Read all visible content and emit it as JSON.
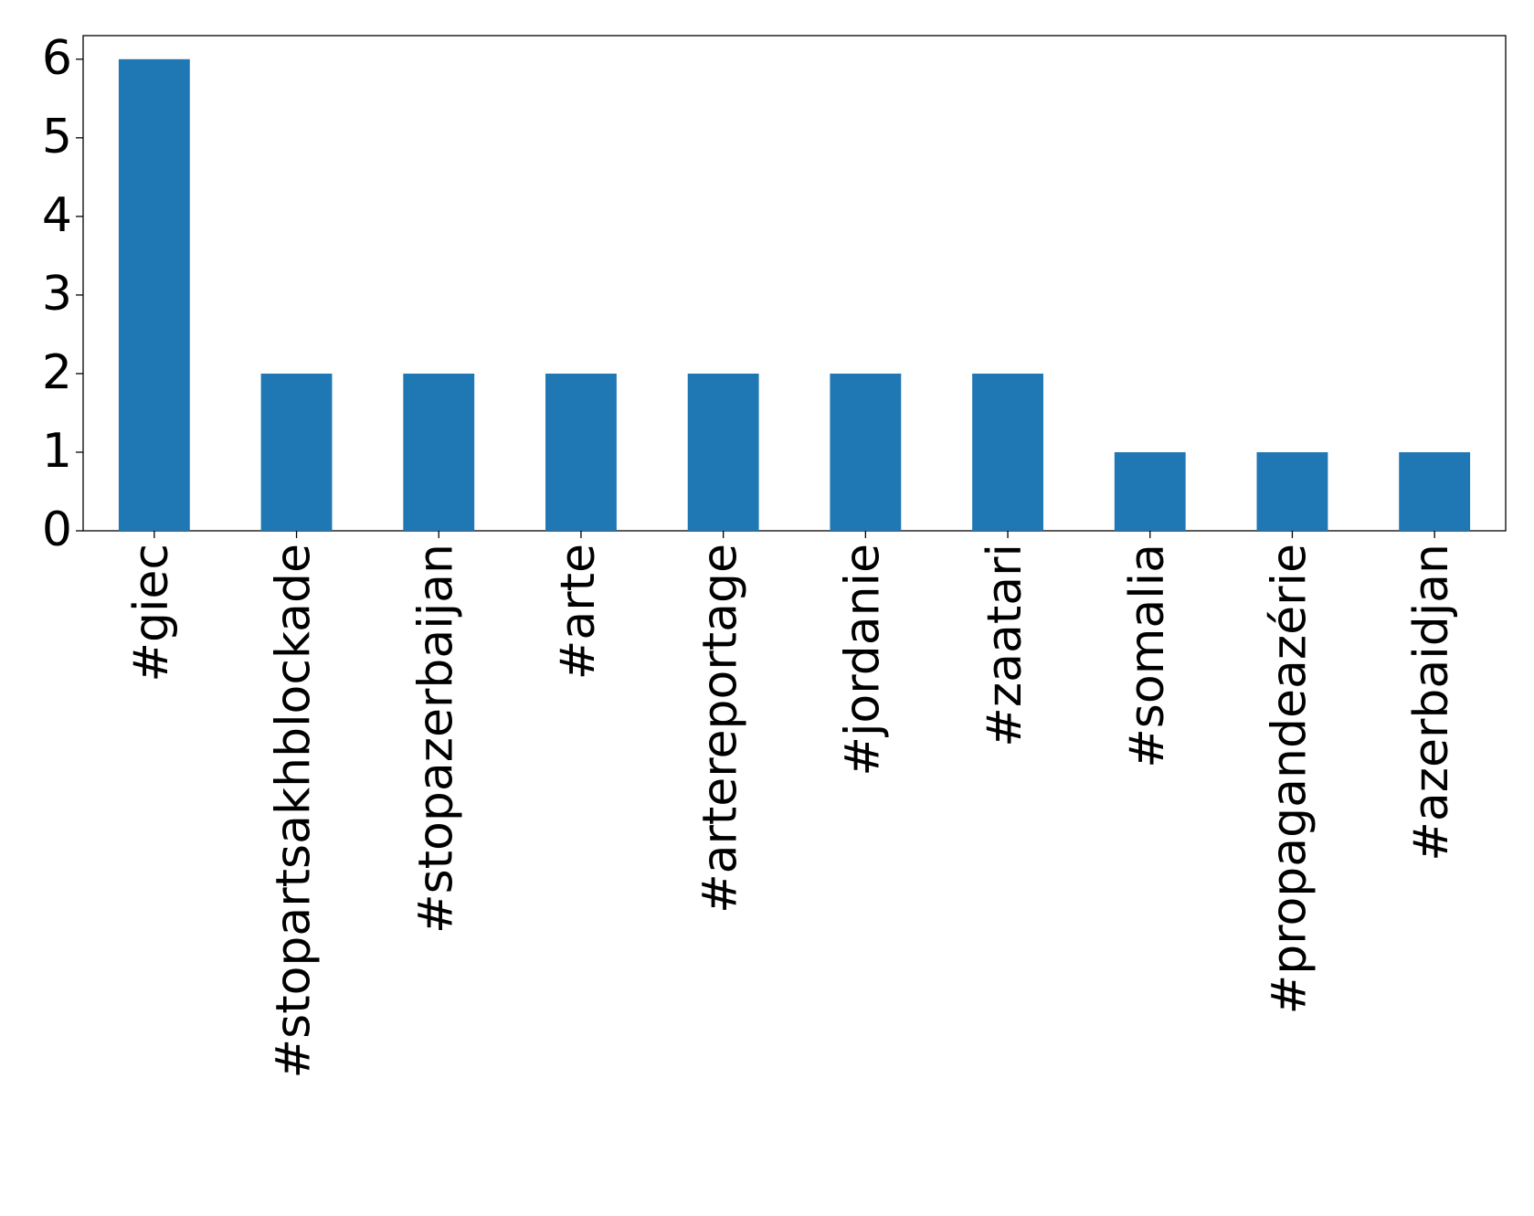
{
  "chart_data": {
    "type": "bar",
    "categories": [
      "#giec",
      "#stopartsakhblockade",
      "#stopazerbaijan",
      "#arte",
      "#artereportage",
      "#jordanie",
      "#zaatari",
      "#somalia",
      "#propagandeazérie",
      "#azerbaidjan"
    ],
    "values": [
      6,
      2,
      2,
      2,
      2,
      2,
      2,
      1,
      1,
      1
    ],
    "color": "#1f77b4",
    "ylim": [
      0,
      6.3
    ],
    "yticks": [
      0,
      1,
      2,
      3,
      4,
      5,
      6
    ],
    "grid": false
  }
}
